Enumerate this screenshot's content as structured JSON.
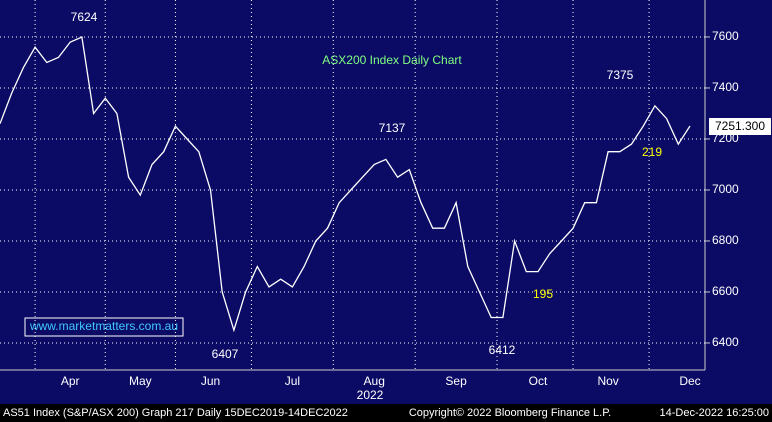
{
  "chart_data": {
    "type": "line",
    "title": "ASX200 Index Daily Chart",
    "categories": [
      null,
      null,
      null,
      null,
      null,
      null,
      "Apr",
      null,
      null,
      null,
      null,
      null,
      "May",
      null,
      null,
      null,
      null,
      null,
      "Jun",
      null,
      null,
      null,
      null,
      null,
      null,
      "Jul",
      null,
      null,
      null,
      null,
      null,
      null,
      "Aug",
      null,
      null,
      null,
      null,
      null,
      null,
      "Sep",
      null,
      null,
      null,
      null,
      null,
      null,
      "Oct",
      null,
      null,
      null,
      null,
      null,
      "Nov",
      null,
      null,
      null,
      null,
      null,
      null,
      "Dec"
    ],
    "values": [
      7260,
      7380,
      7480,
      7560,
      7500,
      7520,
      7580,
      7600,
      7300,
      7360,
      7300,
      7050,
      6980,
      7100,
      7150,
      7250,
      7200,
      7150,
      7000,
      6600,
      6450,
      6600,
      6700,
      6620,
      6650,
      6620,
      6700,
      6800,
      6850,
      6950,
      7000,
      7050,
      7100,
      7120,
      7050,
      7080,
      6950,
      6850,
      6850,
      6950,
      6700,
      6600,
      6500,
      6500,
      6800,
      6680,
      6680,
      6750,
      6800,
      6850,
      6950,
      6950,
      7150,
      7150,
      7180,
      7250,
      7330,
      7280,
      7180,
      7251
    ],
    "color": "#ffffff",
    "ylim": [
      6294,
      7745
    ],
    "yticks": [
      6400,
      6600,
      6800,
      7000,
      7200,
      7400,
      7600
    ],
    "grid": true,
    "year_label": "2022",
    "last_price": "7251.300",
    "annotations": [
      {
        "text": "7624",
        "color": "#ffffff"
      },
      {
        "text": "6407",
        "color": "#ffffff"
      },
      {
        "text": "7137",
        "color": "#ffffff"
      },
      {
        "text": "6412",
        "color": "#ffffff"
      },
      {
        "text": "7375",
        "color": "#ffffff"
      },
      {
        "text": "219",
        "color": "#ffff00"
      },
      {
        "text": "195",
        "color": "#ffff00"
      }
    ],
    "watermark": "www.marketmatters.com.au",
    "footer": [
      "AS51 Index (S&P/ASX 200) Graph 217  Daily 15DEC2019-14DEC2022",
      "Copyright© 2022 Bloomberg Finance L.P.",
      "14-Dec-2022 16:25:00"
    ]
  }
}
